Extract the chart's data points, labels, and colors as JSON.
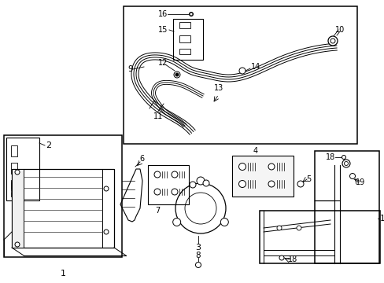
{
  "bg_color": "#ffffff",
  "line_color": "#000000",
  "fig_width": 4.89,
  "fig_height": 3.6
}
